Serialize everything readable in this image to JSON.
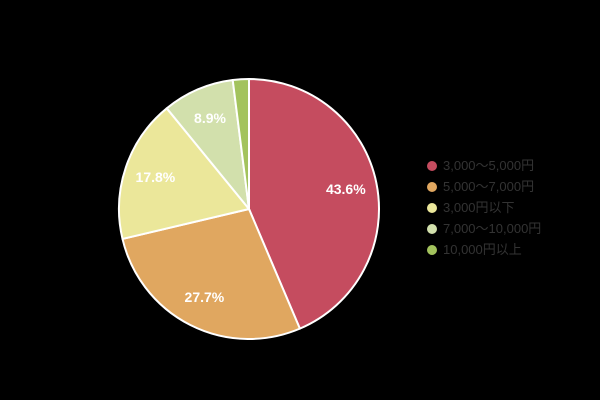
{
  "background_color": "#000000",
  "chart_data": {
    "type": "pie",
    "title": "",
    "legend_position": "right",
    "start_angle_deg": 0,
    "direction": "clockwise",
    "slice_border_color": "#ffffff",
    "label_color": "#ffffff",
    "legend_text_color": "#333333",
    "slices": [
      {
        "name": "3,000〜5,000円",
        "value": 43.6,
        "percent_label": "43.6%",
        "color": "#c54c5f",
        "label_visible": true
      },
      {
        "name": "5,000〜7,000円",
        "value": 27.7,
        "percent_label": "27.7%",
        "color": "#e0a760",
        "label_visible": true
      },
      {
        "name": "3,000円以下",
        "value": 17.8,
        "percent_label": "17.8%",
        "color": "#ebe79a",
        "label_visible": true
      },
      {
        "name": "7,000〜10,000円",
        "value": 8.9,
        "percent_label": "8.9%",
        "color": "#d2e0ac",
        "label_visible": true
      },
      {
        "name": "10,000円以上",
        "value": 2.0,
        "percent_label": "2.0%",
        "color": "#a3c35d",
        "label_visible": false
      }
    ]
  }
}
